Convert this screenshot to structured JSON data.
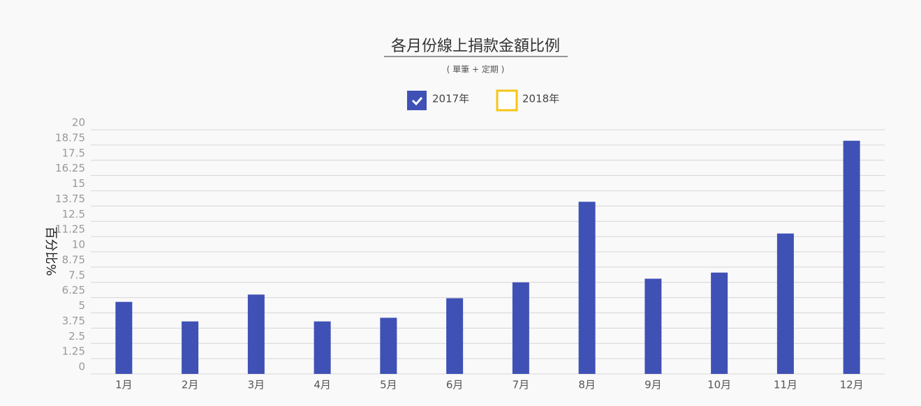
{
  "chart_data": {
    "type": "bar",
    "title": "各月份線上捐款金額比例",
    "subtitle": "( 單筆 + 定期 )",
    "y_label": "百分比%",
    "legend": [
      {
        "name": "2017年",
        "color": "#3f51b5",
        "checked": true
      },
      {
        "name": "2018年",
        "color": "#f5c518",
        "checked": false
      }
    ],
    "categories": [
      "1月",
      "2月",
      "3月",
      "4月",
      "5月",
      "6月",
      "7月",
      "8月",
      "9月",
      "10月",
      "11月",
      "12月"
    ],
    "series": [
      {
        "name": "2017年",
        "color": "#3f51b5",
        "values": [
          5.9,
          4.3,
          6.5,
          4.3,
          4.6,
          6.2,
          7.5,
          14.1,
          7.8,
          8.3,
          11.5,
          19.1
        ]
      }
    ],
    "ylim": [
      0,
      20
    ],
    "yticks": [
      0,
      1.25,
      2.5,
      3.75,
      5,
      6.25,
      7.5,
      8.75,
      10,
      11.25,
      12.5,
      13.75,
      15,
      16.25,
      17.5,
      18.75,
      20
    ],
    "grid": true
  }
}
